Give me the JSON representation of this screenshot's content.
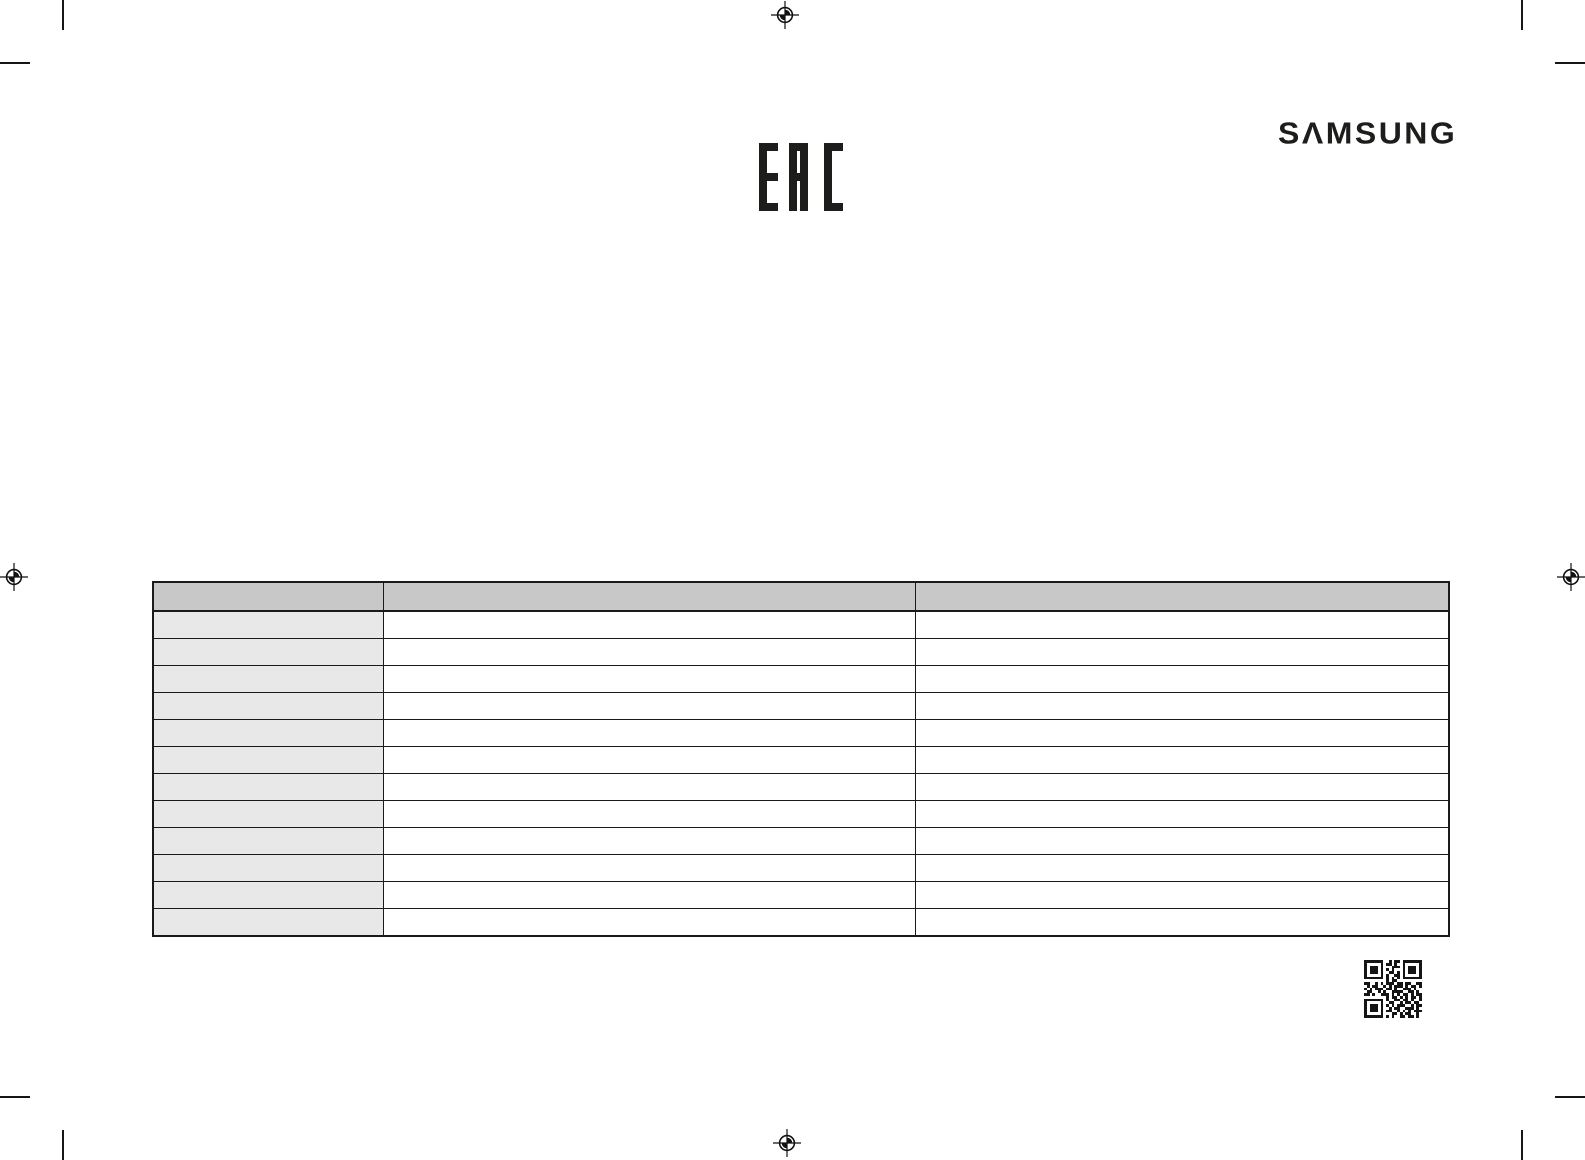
{
  "brand": {
    "name": "SAMSUNG",
    "display": "SΛMSUNG",
    "color": "#1d1d1b"
  },
  "certification": {
    "label": "EAC"
  },
  "table": {
    "header_cells": [
      "",
      "",
      ""
    ],
    "row_count": 12,
    "column_count": 3,
    "cells_empty": true,
    "colors": {
      "header_fill": "#c8c8c8",
      "label_column_fill": "#e8e8e8",
      "border": "#1a1a1a"
    }
  },
  "icons": {
    "qr_code": "qr-code-icon",
    "eac_logo": "eac-logo",
    "registration_marks": [
      "top-center",
      "left-middle",
      "right-middle",
      "bottom-center"
    ],
    "crop_marks": [
      "top-left",
      "top-right",
      "bottom-left",
      "bottom-right"
    ]
  },
  "qr_matrix": [
    "111111100101101111111",
    "100000101101001000001",
    "101110100011101011101",
    "101110101010001011101",
    "101110100110101011101",
    "100000101001101000001",
    "111111101010101111111",
    "000000001011000000000",
    "110010101110110110011",
    "010110010101110101101",
    "101011101101001110100",
    "011001010011110011010",
    "110100111010101101011",
    "000000001011010101101",
    "111111101001101101001",
    "100000100110010110110",
    "101110101010111001011",
    "101110100101100111010",
    "101110101100101010111",
    "100000100011010110010",
    "111111101010011011010"
  ]
}
